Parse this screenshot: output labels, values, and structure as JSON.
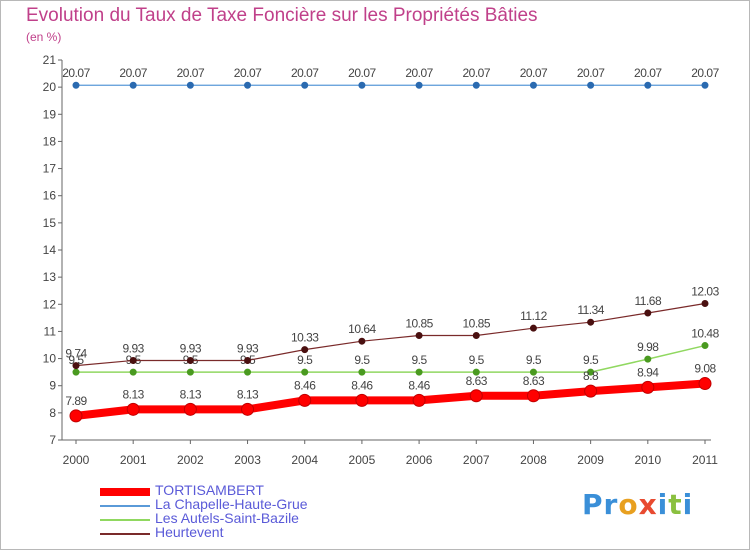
{
  "title": "Evolution du Taux de Taxe Foncière sur les Propriétés Bâties",
  "subtitle": "(en %)",
  "brand": {
    "letters": [
      {
        "ch": "P",
        "color": "#3a8fd8"
      },
      {
        "ch": "r",
        "color": "#3a8fd8"
      },
      {
        "ch": "o",
        "color": "#e8a020"
      },
      {
        "ch": "x",
        "color": "#e84a30"
      },
      {
        "ch": "i",
        "color": "#3a8fd8"
      },
      {
        "ch": "t",
        "color": "#8ac040"
      },
      {
        "ch": "i",
        "color": "#3a8fd8"
      }
    ]
  },
  "chart_data": {
    "type": "line",
    "title": "Evolution du Taux de Taxe Foncière sur les Propriétés Bâties",
    "ylabel": "(en %)",
    "xlabel": "",
    "x": [
      "2000",
      "2001",
      "2002",
      "2003",
      "2004",
      "2005",
      "2006",
      "2007",
      "2008",
      "2009",
      "2010",
      "2011"
    ],
    "ylim": [
      7,
      21
    ],
    "yticks": [
      7,
      8,
      9,
      10,
      11,
      12,
      13,
      14,
      15,
      16,
      17,
      18,
      19,
      20,
      21
    ],
    "grid": false,
    "legend_position": "bottom-left",
    "series": [
      {
        "name": "TORTISAMBERT",
        "color": "#ff0000",
        "values": [
          7.89,
          8.13,
          8.13,
          8.13,
          8.46,
          8.46,
          8.46,
          8.63,
          8.63,
          8.8,
          8.94,
          9.08
        ],
        "labels": [
          "7.89",
          "8.13",
          "8.13",
          "8.13",
          "8.46",
          "8.46",
          "8.46",
          "8.63",
          "8.63",
          "8.8",
          "8.94",
          "9.08"
        ]
      },
      {
        "name": "La Chapelle-Haute-Grue",
        "color": "#5a9ad8",
        "values": [
          20.07,
          20.07,
          20.07,
          20.07,
          20.07,
          20.07,
          20.07,
          20.07,
          20.07,
          20.07,
          20.07,
          20.07
        ],
        "labels": [
          "20.07",
          "20.07",
          "20.07",
          "20.07",
          "20.07",
          "20.07",
          "20.07",
          "20.07",
          "20.07",
          "20.07",
          "20.07",
          "20.07"
        ]
      },
      {
        "name": "Les Autels-Saint-Bazile",
        "color": "#90d860",
        "values": [
          9.5,
          9.5,
          9.5,
          9.5,
          9.5,
          9.5,
          9.5,
          9.5,
          9.5,
          9.5,
          9.98,
          10.48
        ],
        "labels": [
          "9.5",
          "9.5",
          "9.5",
          "9.5",
          "9.5",
          "9.5",
          "9.5",
          "9.5",
          "9.5",
          "9.5",
          "9.98",
          "10.48"
        ]
      },
      {
        "name": "Heurtevent",
        "color": "#7a2a2a",
        "values": [
          9.74,
          9.93,
          9.93,
          9.93,
          10.33,
          10.64,
          10.85,
          10.85,
          11.12,
          11.34,
          11.68,
          12.03
        ],
        "labels": [
          "9.74",
          "9.93",
          "9.93",
          "9.93",
          "10.33",
          "10.64",
          "10.85",
          "10.85",
          "11.12",
          "11.34",
          "11.68",
          "12.03"
        ]
      }
    ]
  }
}
